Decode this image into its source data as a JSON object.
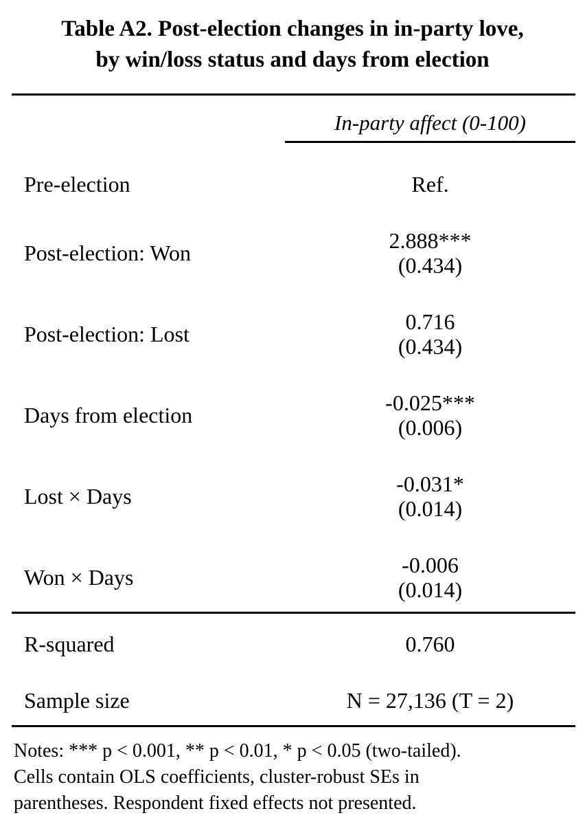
{
  "title": {
    "line1": "Table A2. Post-election changes in in-party love,",
    "line2": "by win/loss status and days from election"
  },
  "header": {
    "dependent_variable": "In-party affect (0-100)"
  },
  "rows": [
    {
      "label": "Pre-election",
      "coef": "Ref.",
      "se": ""
    },
    {
      "label": "Post-election: Won",
      "coef": "2.888***",
      "se": "(0.434)"
    },
    {
      "label": "Post-election: Lost",
      "coef": "0.716",
      "se": "(0.434)"
    },
    {
      "label": "Days from election",
      "coef": "-0.025***",
      "se": "(0.006)"
    },
    {
      "label": "Lost × Days",
      "coef": "-0.031*",
      "se": "(0.014)"
    },
    {
      "label": "Won × Days",
      "coef": "-0.006",
      "se": "(0.014)"
    }
  ],
  "stats": [
    {
      "label": "R-squared",
      "value": "0.760"
    },
    {
      "label": "Sample size",
      "value": "N = 27,136 (T = 2)"
    }
  ],
  "notes": {
    "line1": "Notes: *** p < 0.001, ** p < 0.01, * p < 0.05 (two-tailed).",
    "line2": "Cells contain OLS coefficients, cluster-robust SEs in",
    "line3": "parentheses. Respondent fixed effects not presented."
  },
  "colors": {
    "text": "#000000",
    "background": "#ffffff",
    "rule": "#000000"
  }
}
